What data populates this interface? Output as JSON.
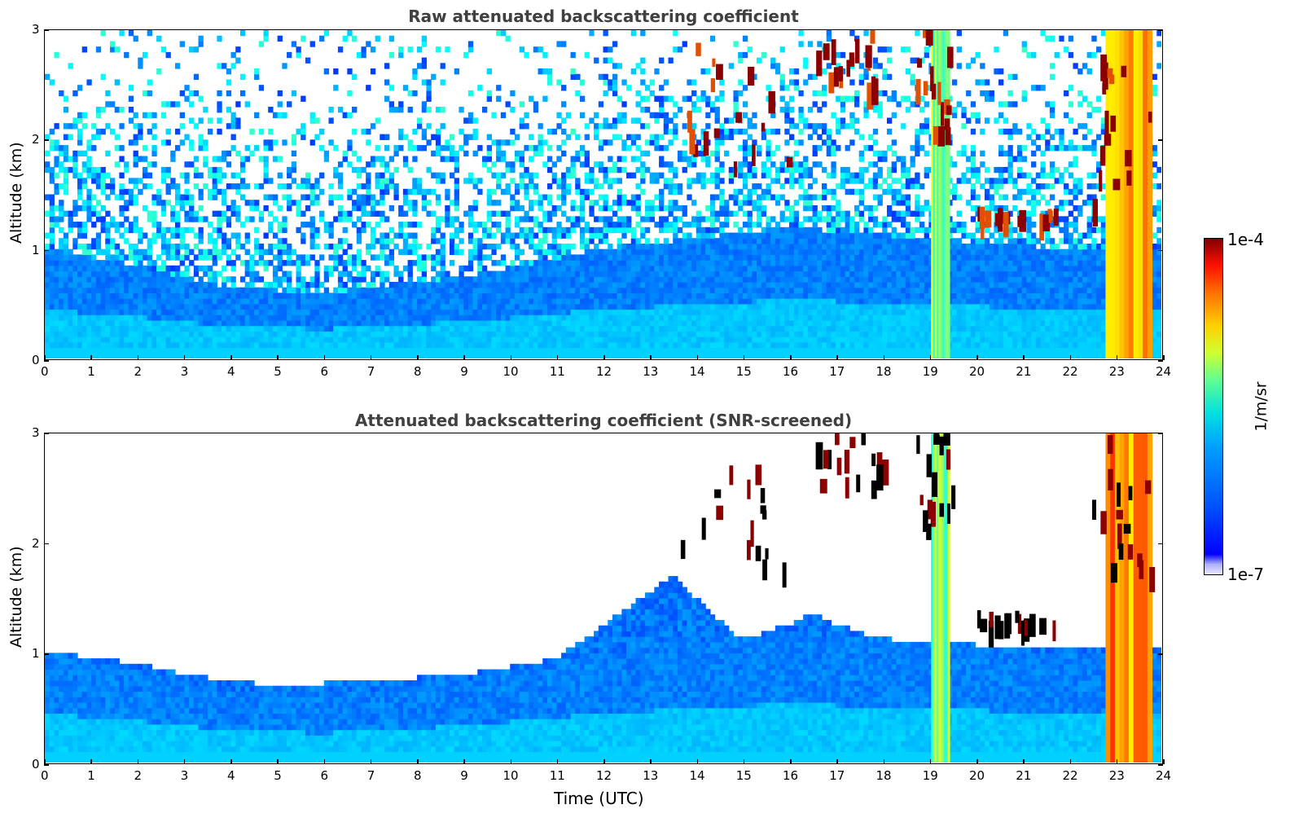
{
  "chart_data": [
    {
      "type": "heatmap",
      "title": "Raw attenuated backscattering coefficient",
      "xlabel": "",
      "ylabel": "Altitude (km)",
      "xlim": [
        0,
        24
      ],
      "ylim": [
        0,
        3
      ],
      "xticks": [
        "0",
        "1",
        "2",
        "3",
        "4",
        "5",
        "6",
        "7",
        "8",
        "9",
        "10",
        "11",
        "12",
        "13",
        "14",
        "15",
        "16",
        "17",
        "18",
        "19",
        "20",
        "21",
        "22",
        "23",
        "24"
      ],
      "yticks": [
        "0",
        "1",
        "2",
        "3"
      ],
      "colorscale": "jet",
      "features": {
        "boundary_layer_top_km": [
          [
            0,
            1.0
          ],
          [
            2,
            0.85
          ],
          [
            4,
            0.65
          ],
          [
            6,
            0.6
          ],
          [
            9,
            0.75
          ],
          [
            12,
            1.0
          ],
          [
            16,
            1.2
          ],
          [
            22,
            1.0
          ]
        ],
        "cloud_layers": [
          {
            "t_start": 13.5,
            "t_end": 16.0,
            "alt_km": [
              1.7,
              2.8
            ]
          },
          {
            "t_start": 16.5,
            "t_end": 18.0,
            "alt_km": [
              2.4,
              3.0
            ]
          },
          {
            "t_start": 18.7,
            "t_end": 19.5,
            "alt_km": [
              2.0,
              3.0
            ]
          },
          {
            "t_start": 20.0,
            "t_end": 21.7,
            "alt_km": [
              1.2,
              1.3
            ]
          },
          {
            "t_start": 22.5,
            "t_end": 23.8,
            "alt_km": [
              1.2,
              3.0
            ]
          }
        ],
        "precipitation_columns_utc": [
          [
            19.05,
            19.45
          ],
          [
            22.8,
            23.8
          ]
        ]
      }
    },
    {
      "type": "heatmap",
      "title": "Attenuated backscattering coefficient (SNR-screened)",
      "xlabel": "Time (UTC)",
      "ylabel": "Altitude (km)",
      "xlim": [
        0,
        24
      ],
      "ylim": [
        0,
        3
      ],
      "xticks": [
        "0",
        "1",
        "2",
        "3",
        "4",
        "5",
        "6",
        "7",
        "8",
        "9",
        "10",
        "11",
        "12",
        "13",
        "14",
        "15",
        "16",
        "17",
        "18",
        "19",
        "20",
        "21",
        "22",
        "23",
        "24"
      ],
      "yticks": [
        "0",
        "1",
        "2",
        "3"
      ],
      "colorscale": "jet",
      "features": {
        "screened_top_km": [
          [
            0,
            1.02
          ],
          [
            2,
            0.9
          ],
          [
            3,
            0.8
          ],
          [
            5,
            0.7
          ],
          [
            7,
            0.75
          ],
          [
            9,
            0.8
          ],
          [
            11,
            0.95
          ],
          [
            12.5,
            1.4
          ],
          [
            13.5,
            1.7
          ],
          [
            15,
            1.1
          ],
          [
            16.5,
            1.35
          ],
          [
            18,
            1.1
          ],
          [
            22,
            1.05
          ]
        ]
      }
    }
  ],
  "colorbar": {
    "max_label": "1e-4",
    "min_label": "1e-7",
    "unit": "1/m/sr"
  },
  "panels": {
    "top_title": "Raw attenuated backscattering coefficient",
    "bottom_title": "Attenuated backscattering coefficient (SNR-screened)",
    "ylabel": "Altitude (km)",
    "xlabel": "Time (UTC)"
  }
}
